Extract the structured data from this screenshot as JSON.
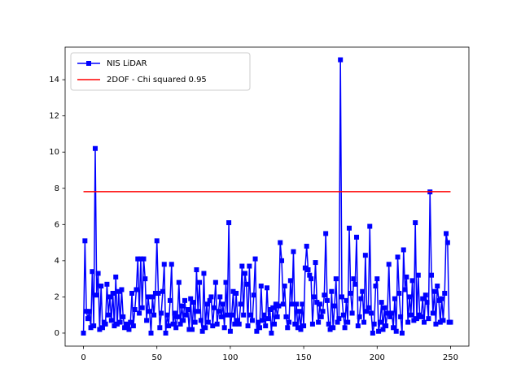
{
  "chart_data": {
    "type": "line",
    "xlim": [
      -12.5,
      262.5
    ],
    "ylim": [
      -0.72,
      15.8
    ],
    "xticks": [
      0,
      50,
      100,
      150,
      200,
      250
    ],
    "yticks": [
      0,
      2,
      4,
      6,
      8,
      10,
      12,
      14
    ],
    "grid": false,
    "legend": "upper left",
    "series": [
      {
        "name": "NIS LiDAR",
        "color": "#0000ff",
        "marker": "square",
        "x": [
          0,
          1,
          2,
          3,
          4,
          5,
          6,
          7,
          8,
          9,
          10,
          11,
          12,
          13,
          14,
          15,
          16,
          17,
          18,
          19,
          20,
          21,
          22,
          23,
          24,
          25,
          26,
          27,
          28,
          29,
          30,
          31,
          32,
          33,
          34,
          35,
          36,
          37,
          38,
          39,
          40,
          41,
          42,
          43,
          44,
          45,
          46,
          47,
          48,
          49,
          50,
          51,
          52,
          53,
          54,
          55,
          56,
          57,
          58,
          59,
          60,
          61,
          62,
          63,
          64,
          65,
          66,
          67,
          68,
          69,
          70,
          71,
          72,
          73,
          74,
          75,
          76,
          77,
          78,
          79,
          80,
          81,
          82,
          83,
          84,
          85,
          86,
          87,
          88,
          89,
          90,
          91,
          92,
          93,
          94,
          95,
          96,
          97,
          98,
          99,
          100,
          101,
          102,
          103,
          104,
          105,
          106,
          107,
          108,
          109,
          110,
          111,
          112,
          113,
          114,
          115,
          116,
          117,
          118,
          119,
          120,
          121,
          122,
          123,
          124,
          125,
          126,
          127,
          128,
          129,
          130,
          131,
          132,
          133,
          134,
          135,
          136,
          137,
          138,
          139,
          140,
          141,
          142,
          143,
          144,
          145,
          146,
          147,
          148,
          149,
          150,
          151,
          152,
          153,
          154,
          155,
          156,
          157,
          158,
          159,
          160,
          161,
          162,
          163,
          164,
          165,
          166,
          167,
          168,
          169,
          170,
          171,
          172,
          173,
          174,
          175,
          176,
          177,
          178,
          179,
          180,
          181,
          182,
          183,
          184,
          185,
          186,
          187,
          188,
          189,
          190,
          191,
          192,
          193,
          194,
          195,
          196,
          197,
          198,
          199,
          200,
          201,
          202,
          203,
          204,
          205,
          206,
          207,
          208,
          209,
          210,
          211,
          212,
          213,
          214,
          215,
          216,
          217,
          218,
          219,
          220,
          221,
          222,
          223,
          224,
          225,
          226,
          227,
          228,
          229,
          230,
          231,
          232,
          233,
          234,
          235,
          236,
          237,
          238,
          239,
          240,
          241,
          242,
          243,
          244,
          245,
          246,
          247,
          248,
          249,
          250
        ],
        "values": [
          0.0,
          5.1,
          1.2,
          0.8,
          1.2,
          0.3,
          3.4,
          0.4,
          10.2,
          2.1,
          3.3,
          0.2,
          2.6,
          0.3,
          0.6,
          0.5,
          2.7,
          1.0,
          2.0,
          0.7,
          2.2,
          0.4,
          3.1,
          0.5,
          2.3,
          0.6,
          2.4,
          0.9,
          0.3,
          0.5,
          0.4,
          0.2,
          0.6,
          2.2,
          0.4,
          1.3,
          2.4,
          4.1,
          1.1,
          4.1,
          1.4,
          4.1,
          3.0,
          0.7,
          2.0,
          1.2,
          0.0,
          2.0,
          1.0,
          2.2,
          5.1,
          2.2,
          0.3,
          1.1,
          2.3,
          3.8,
          0.0,
          1.0,
          0.4,
          1.8,
          3.8,
          0.5,
          1.1,
          0.3,
          0.9,
          2.8,
          0.5,
          1.5,
          0.7,
          1.8,
          1.0,
          1.3,
          0.2,
          1.9,
          0.2,
          1.7,
          0.6,
          3.5,
          1.2,
          2.8,
          0.7,
          0.1,
          3.3,
          0.3,
          1.6,
          0.6,
          1.8,
          2.0,
          0.4,
          1.4,
          2.8,
          0.5,
          1.2,
          2.0,
          0.9,
          1.6,
          0.3,
          2.8,
          1.0,
          6.1,
          0.1,
          1.0,
          2.3,
          0.5,
          2.2,
          0.7,
          0.5,
          1.6,
          3.7,
          1.0,
          3.3,
          2.7,
          0.4,
          3.7,
          1.0,
          0.7,
          2.1,
          4.1,
          0.1,
          0.6,
          0.3,
          2.6,
          0.7,
          1.0,
          0.4,
          2.5,
          0.8,
          1.3,
          0.0,
          1.4,
          0.5,
          1.6,
          0.9,
          1.5,
          5.0,
          4.0,
          1.6,
          2.6,
          0.9,
          0.3,
          0.6,
          2.9,
          1.6,
          4.5,
          0.5,
          1.6,
          0.3,
          1.2,
          0.2,
          1.6,
          0.4,
          3.6,
          4.8,
          3.5,
          3.2,
          3.0,
          0.5,
          2.0,
          3.9,
          1.7,
          0.6,
          1.6,
          0.9,
          1.2,
          2.1,
          5.5,
          1.8,
          0.5,
          0.2,
          2.3,
          0.3,
          1.5,
          3.0,
          0.6,
          0.8,
          15.1,
          2.0,
          1.0,
          0.3,
          1.8,
          0.6,
          5.8,
          2.2,
          1.1,
          3.0,
          2.7,
          5.3,
          0.4,
          0.9,
          1.9,
          2.3,
          0.6,
          4.3,
          1.2,
          1.4,
          5.9,
          1.1,
          0.0,
          0.5,
          2.6,
          3.0,
          0.1,
          0.6,
          1.7,
          0.2,
          1.4,
          0.4,
          1.1,
          3.8,
          0.9,
          1.1,
          0.3,
          1.9,
          0.1,
          4.2,
          2.2,
          0.9,
          0.0,
          4.6,
          2.4,
          3.1,
          0.6,
          2.0,
          1.0,
          2.9,
          0.7,
          6.1,
          0.8,
          3.2,
          1.0,
          0.9,
          1.9,
          0.6,
          2.1,
          1.7,
          0.8,
          7.8,
          3.2,
          1.1,
          2.3,
          0.5,
          2.6,
          1.8,
          0.6,
          1.9,
          0.7,
          2.2,
          5.5,
          5.0,
          0.6,
          0.6
        ]
      },
      {
        "name": "2DOF - Chi squared 0.95",
        "color": "#ff0000",
        "x": [
          0,
          250
        ],
        "values": [
          7.815,
          7.815
        ]
      }
    ]
  }
}
